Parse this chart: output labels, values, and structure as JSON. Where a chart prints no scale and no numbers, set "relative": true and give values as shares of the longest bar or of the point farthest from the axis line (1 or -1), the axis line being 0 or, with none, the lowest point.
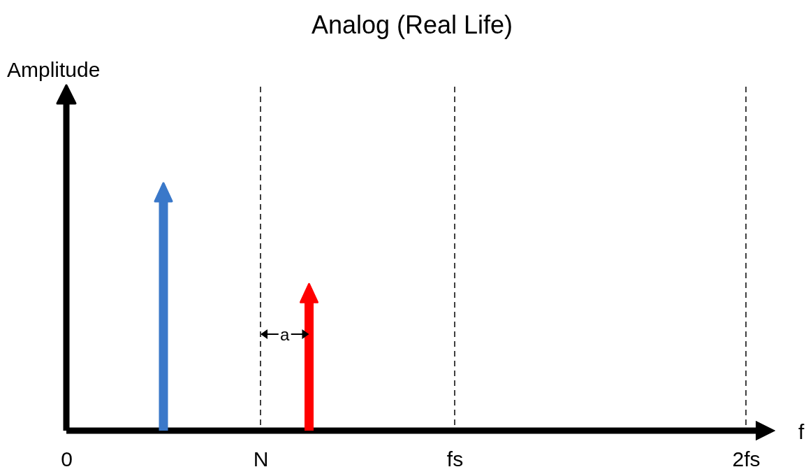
{
  "chart_data": {
    "type": "bar",
    "title": "Analog (Real Life)",
    "categories": [
      "0",
      null,
      null,
      null,
      "N",
      null,
      null,
      null,
      "fs",
      null,
      null,
      null,
      null,
      null,
      "2fs"
    ],
    "values": [
      null,
      null,
      1,
      null,
      null,
      0.56,
      null,
      null,
      null,
      null,
      null,
      null,
      null,
      null,
      null
    ],
    "colors": [
      null,
      null,
      "#3a78c9",
      null,
      null,
      "#ff0000",
      null,
      null,
      null,
      null,
      null,
      null,
      null,
      null,
      null
    ],
    "relative": true,
    "ref_lines": [
      {
        "axis": "x",
        "value": "N",
        "line_style": "dashed",
        "color": "#000000"
      },
      {
        "axis": "x",
        "value": "fs",
        "line_style": "dashed",
        "color": "#000000"
      },
      {
        "axis": "x",
        "value": "2fs",
        "line_style": "dashed",
        "color": "#000000"
      }
    ],
    "annotations": [
      "a",
      "Amplitude",
      "f"
    ]
  }
}
